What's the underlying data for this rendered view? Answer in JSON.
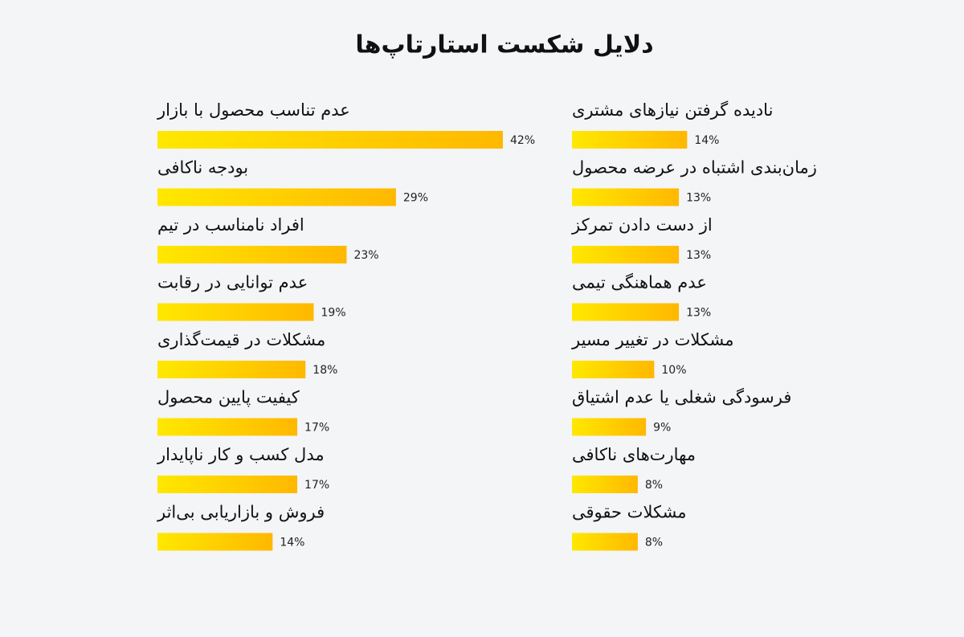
{
  "chart_data": {
    "type": "bar",
    "orientation": "horizontal",
    "title": "دلایل شکست استارتاپ‌ها",
    "categories": [
      "عدم تناسب محصول با بازار",
      "بودجه ناکافی",
      "افراد نامناسب در تیم",
      "عدم توانایی در رقابت",
      "مشکلات در قیمت‌گذاری",
      "کیفیت پایین محصول",
      "مدل کسب و کار ناپایدار",
      "فروش و بازاریابی بی‌اثر",
      "نادیده گرفتن نیازهای مشتری",
      "زمان‌بندی اشتباه در عرضه محصول",
      "از دست دادن تمرکز",
      "عدم هماهنگی تیمی",
      "مشکلات در تغییر مسیر",
      "فرسودگی شغلی یا عدم اشتیاق",
      "مهارت‌های ناکافی",
      "مشکلات حقوقی"
    ],
    "values": [
      42,
      29,
      23,
      19,
      18,
      17,
      17,
      14,
      14,
      13,
      13,
      13,
      10,
      9,
      8,
      8
    ],
    "value_labels": [
      "42%",
      "29%",
      "23%",
      "19%",
      "18%",
      "17%",
      "17%",
      "14%",
      "14%",
      "13%",
      "13%",
      "13%",
      "10%",
      "9%",
      "8%",
      "8%"
    ],
    "colors": [
      "#ffe800",
      "#ffb800"
    ]
  }
}
